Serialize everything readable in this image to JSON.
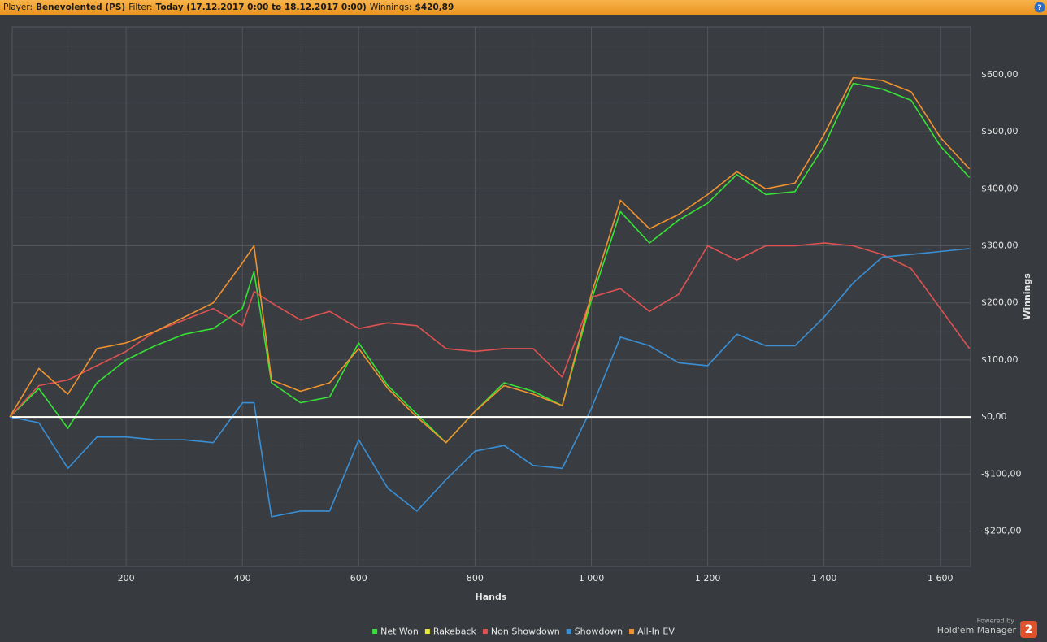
{
  "header": {
    "player_label": "Player:",
    "player": "Benevolented (PS)",
    "filter_label": "Filter:",
    "filter": "Today (17.12.2017 0:00 to 18.12.2017 0:00)",
    "winnings_label": "Winnings:",
    "winnings": "$420,89",
    "help": "?"
  },
  "footer": {
    "powered": "Powered by",
    "brand": "Hold'em Manager",
    "badge": "2"
  },
  "chart_data": {
    "type": "line",
    "x_label": "Hands",
    "y_label": "Winnings",
    "x": [
      0,
      50,
      100,
      150,
      200,
      250,
      300,
      350,
      400,
      420,
      450,
      500,
      550,
      600,
      650,
      700,
      750,
      800,
      850,
      900,
      950,
      1000,
      1050,
      1100,
      1150,
      1200,
      1250,
      1300,
      1350,
      1400,
      1450,
      1500,
      1550,
      1600,
      1650
    ],
    "series": [
      {
        "name": "Net Won",
        "color": "#35e335",
        "values": [
          0,
          50,
          -20,
          60,
          100,
          125,
          145,
          155,
          190,
          255,
          60,
          25,
          35,
          130,
          55,
          5,
          -45,
          10,
          60,
          45,
          20,
          205,
          360,
          305,
          345,
          375,
          425,
          390,
          395,
          475,
          585,
          575,
          555,
          475,
          420
        ]
      },
      {
        "name": "Rakeback",
        "color": "#e6e633",
        "values": [
          0,
          0,
          0,
          0,
          0,
          0,
          0,
          0,
          0,
          0,
          0,
          0,
          0,
          0,
          0,
          0,
          0,
          0,
          0,
          0,
          0,
          0,
          0,
          0,
          0,
          0,
          0,
          0,
          0,
          0,
          0,
          0,
          0,
          0,
          0
        ]
      },
      {
        "name": "Non Showdown",
        "color": "#e05252",
        "values": [
          0,
          55,
          65,
          90,
          115,
          150,
          170,
          190,
          160,
          220,
          200,
          170,
          185,
          155,
          165,
          160,
          120,
          115,
          120,
          120,
          70,
          210,
          225,
          185,
          215,
          300,
          275,
          300,
          300,
          305,
          300,
          285,
          260,
          190,
          120
        ]
      },
      {
        "name": "Showdown",
        "color": "#3a8fd4",
        "values": [
          0,
          -10,
          -90,
          -35,
          -35,
          -40,
          -40,
          -45,
          25,
          25,
          -175,
          -165,
          -165,
          -40,
          -125,
          -165,
          -110,
          -60,
          -50,
          -85,
          -90,
          15,
          140,
          125,
          95,
          90,
          145,
          125,
          125,
          175,
          235,
          280,
          285,
          290,
          295
        ]
      },
      {
        "name": "All-In EV",
        "color": "#f0922e",
        "values": [
          0,
          85,
          40,
          120,
          130,
          150,
          175,
          200,
          270,
          300,
          65,
          45,
          60,
          120,
          50,
          0,
          -45,
          10,
          55,
          40,
          20,
          215,
          380,
          330,
          355,
          390,
          430,
          400,
          410,
          495,
          595,
          590,
          570,
          490,
          435
        ]
      }
    ],
    "xlim": [
      0,
      1652
    ],
    "xticks": [
      200,
      400,
      600,
      800,
      {
        "value": 1000,
        "label": "1 000"
      },
      {
        "value": 1200,
        "label": "1 200"
      },
      {
        "value": 1400,
        "label": "1 400"
      },
      {
        "value": 1600,
        "label": "1 600"
      }
    ],
    "ylim": [
      -262,
      684
    ],
    "yticks": [
      {
        "value": -200,
        "label": "-$200,00"
      },
      {
        "value": -100,
        "label": "-$100,00"
      },
      {
        "value": 0,
        "label": "$0,00"
      },
      {
        "value": 100,
        "label": "$100,00"
      },
      {
        "value": 200,
        "label": "$200,00"
      },
      {
        "value": 300,
        "label": "$300,00"
      },
      {
        "value": 400,
        "label": "$400,00"
      },
      {
        "value": 500,
        "label": "$500,00"
      },
      {
        "value": 600,
        "label": "$600,00"
      }
    ],
    "grid": true,
    "legend": "bottom"
  }
}
